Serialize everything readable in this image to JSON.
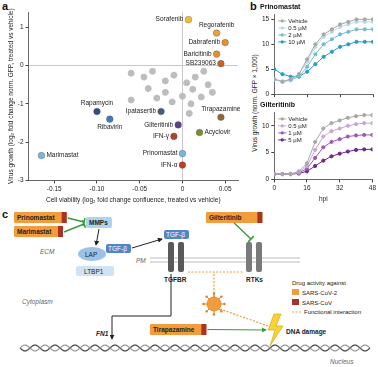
{
  "chart_data": [
    {
      "type": "scatter",
      "panel_label": "a",
      "xlabel": "Cell viability (log₂ fold change confluence, treated vs vehicle)",
      "ylabel": "Virus growth (log₂ fold change norm. GFP, treated vs vehicle)",
      "xlim": [
        -0.18,
        0.065
      ],
      "xticks": [
        -0.15,
        {
          "value": -0.1,
          "label": "-0.10"
        },
        -0.05,
        0,
        0.05
      ],
      "ylim": [
        -3,
        1.4
      ],
      "yticks": [
        -3,
        -2,
        -1,
        0,
        1
      ],
      "grid": false,
      "marker": "circle",
      "points": [
        {
          "x": 0.007,
          "y": 1.2,
          "label": "Sorafenib",
          "color": "#f2c12e"
        },
        {
          "x": 0.04,
          "y": 0.85,
          "label": "Regorafenib",
          "color": "#f0a035"
        },
        {
          "x": 0.05,
          "y": 0.6,
          "label": "Dabrafenib",
          "color": "#e8902c"
        },
        {
          "x": 0.04,
          "y": 0.3,
          "label": "Baricitinib",
          "color": "#e8902c"
        },
        {
          "x": 0.045,
          "y": 0.05,
          "label": "SB239063",
          "color": "#c8641e"
        },
        {
          "x": -0.1,
          "y": -1.2,
          "label": "Rapamycin",
          "color": "#2d4d86"
        },
        {
          "x": -0.085,
          "y": -1.4,
          "label": "Ribavirin",
          "color": "#3b7cc0"
        },
        {
          "x": -0.025,
          "y": -1.2,
          "label": "Ipatasertib",
          "color": "#4a5a86"
        },
        {
          "x": -0.005,
          "y": -1.55,
          "label": "Gilteritinib",
          "color": "#5e3c8e"
        },
        {
          "x": 0.045,
          "y": -1.35,
          "label": "Tirapazamine",
          "color": "#8e6a3a"
        },
        {
          "x": 0.02,
          "y": -1.75,
          "label": "Acyclovir",
          "color": "#7c8a32"
        },
        {
          "x": -0.01,
          "y": -1.85,
          "label": "IFN-γ",
          "color": "#b0432c"
        },
        {
          "x": -0.165,
          "y": -2.35,
          "label": "Marimastat",
          "color": "#74b9dc"
        },
        {
          "x": 0.0,
          "y": -2.3,
          "label": "Prinomastat",
          "color": "#74b9dc"
        },
        {
          "x": 0.0,
          "y": -2.6,
          "label": "IFN-α",
          "color": "#c23a2c"
        },
        {
          "x": -0.06,
          "y": -0.2,
          "label": null,
          "color": "#bdbdbd"
        },
        {
          "x": -0.045,
          "y": -0.3,
          "label": null,
          "color": "#bdbdbd"
        },
        {
          "x": -0.035,
          "y": -0.15,
          "label": null,
          "color": "#bdbdbd"
        },
        {
          "x": -0.02,
          "y": -0.4,
          "label": null,
          "color": "#bdbdbd"
        },
        {
          "x": -0.01,
          "y": -0.25,
          "label": null,
          "color": "#bdbdbd"
        },
        {
          "x": 0.005,
          "y": -0.45,
          "label": null,
          "color": "#bdbdbd"
        },
        {
          "x": 0.015,
          "y": -0.3,
          "label": null,
          "color": "#bdbdbd"
        },
        {
          "x": 0.025,
          "y": -0.15,
          "label": null,
          "color": "#bdbdbd"
        },
        {
          "x": 0.03,
          "y": -0.5,
          "label": null,
          "color": "#bdbdbd"
        },
        {
          "x": -0.04,
          "y": -0.6,
          "label": null,
          "color": "#bdbdbd"
        },
        {
          "x": -0.02,
          "y": -0.7,
          "label": null,
          "color": "#bdbdbd"
        },
        {
          "x": 0.0,
          "y": -0.8,
          "label": null,
          "color": "#bdbdbd"
        },
        {
          "x": 0.012,
          "y": -0.62,
          "label": null,
          "color": "#bdbdbd"
        },
        {
          "x": 0.022,
          "y": -0.82,
          "label": null,
          "color": "#bdbdbd"
        },
        {
          "x": 0.01,
          "y": -1.0,
          "label": null,
          "color": "#bdbdbd"
        },
        {
          "x": -0.012,
          "y": -0.95,
          "label": null,
          "color": "#bdbdbd"
        },
        {
          "x": -0.03,
          "y": -0.85,
          "label": null,
          "color": "#bdbdbd"
        },
        {
          "x": 0.035,
          "y": -0.7,
          "label": null,
          "color": "#bdbdbd"
        },
        {
          "x": 0.008,
          "y": -1.25,
          "label": null,
          "color": "#bdbdbd"
        },
        {
          "x": -0.06,
          "y": -0.9,
          "label": null,
          "color": "#bdbdbd"
        }
      ]
    },
    {
      "type": "line",
      "panel_label": "b",
      "title": "Prinomastat",
      "ylabel": "Virus growth (norm. GFP × 1,000)",
      "x": [
        0,
        4,
        8,
        12,
        16,
        20,
        24,
        28,
        32,
        36,
        40,
        44,
        48
      ],
      "xlim": [
        0,
        48
      ],
      "xticks": [
        0,
        16,
        32,
        48
      ],
      "ylim": [
        0,
        16
      ],
      "yticks": [
        0,
        5,
        10,
        15
      ],
      "grid": false,
      "legend": "upper left",
      "tick_labels": "y",
      "marker": "circle",
      "series": [
        {
          "name": "Vehicle",
          "color": "#a8a8a8",
          "values": [
            3,
            2.5,
            3,
            4,
            7,
            10,
            12,
            13,
            14,
            14.5,
            15,
            15,
            15
          ]
        },
        {
          "name": "0.5 µM",
          "color": "#b8dbe8",
          "values": [
            3,
            2.5,
            3,
            4,
            6.5,
            9.5,
            11.5,
            12.5,
            13.5,
            14,
            14.5,
            14.5,
            14.5
          ]
        },
        {
          "name": "2 µM",
          "color": "#6fbcd6",
          "values": [
            3,
            2.5,
            2.8,
            3.5,
            5.5,
            8,
            10,
            11,
            12,
            12.5,
            13,
            13,
            13
          ]
        },
        {
          "name": "10 µM",
          "color": "#2a9cc6",
          "values": [
            5,
            4,
            3.5,
            3.5,
            4.5,
            6,
            7.5,
            8.5,
            9.5,
            10,
            10.5,
            10.5,
            10.5
          ]
        }
      ]
    },
    {
      "type": "line",
      "title": "Gilteritinib",
      "xlabel": "hpi",
      "x": [
        0,
        4,
        8,
        12,
        16,
        20,
        24,
        28,
        32,
        36,
        40,
        44,
        48
      ],
      "xlim": [
        0,
        48
      ],
      "xticks": [
        0,
        16,
        32,
        48
      ],
      "ylim": [
        0,
        12.5
      ],
      "yticks": [
        0,
        5,
        10
      ],
      "grid": false,
      "legend": "upper left",
      "marker": "circle",
      "series": [
        {
          "name": "Vehicle",
          "color": "#a8a8a8",
          "values": [
            1,
            1,
            1,
            1.5,
            3,
            7,
            9.5,
            10.5,
            11,
            11.5,
            11.8,
            12,
            12
          ]
        },
        {
          "name": "0.5 µM",
          "color": "#c9a6d6",
          "values": [
            1,
            1,
            1,
            1.3,
            2.5,
            5.5,
            8,
            9,
            9.5,
            10,
            10.3,
            10.5,
            10.5
          ]
        },
        {
          "name": "1 µM",
          "color": "#9b5bb5",
          "values": [
            1,
            1,
            1,
            1.2,
            2,
            4,
            6,
            7,
            7.5,
            8,
            8.2,
            8.3,
            8.3
          ]
        },
        {
          "name": "5 µM",
          "color": "#6a2a8a",
          "values": [
            1,
            1,
            1,
            1.1,
            1.5,
            2.5,
            3.5,
            4.3,
            4.8,
            5.2,
            5.5,
            5.6,
            5.6
          ]
        }
      ]
    }
  ],
  "diagram": {
    "panel_label": "c",
    "drugs": [
      {
        "name": "Prinomastat",
        "activity": [
          "SARS-CoV-2",
          "SARS-CoV"
        ]
      },
      {
        "name": "Marimastat",
        "activity": [
          "SARS-CoV-2",
          "SARS-CoV"
        ]
      },
      {
        "name": "Gilteritinib",
        "activity": [
          "SARS-CoV-2",
          "SARS-CoV"
        ]
      },
      {
        "name": "Tirapazamine",
        "activity": [
          "SARS-CoV-2",
          "SARS-CoV"
        ]
      }
    ],
    "targets": [
      "MMPs",
      "TGFBR",
      "RTKs",
      "DNA damage"
    ],
    "ligand": "TGF-β",
    "latent_complex": [
      "LAP",
      "LTBP1"
    ],
    "gene": "FN1",
    "compartments": [
      "ECM",
      "PM",
      "Cytoplasm",
      "Nucleus"
    ],
    "legend": {
      "title": "Drug activity against",
      "items": [
        {
          "label": "SARS-CoV-2",
          "color": "#f39c3c"
        },
        {
          "label": "SARS-CoV",
          "color": "#a93226"
        }
      ],
      "interaction": "Functional interaction"
    }
  }
}
